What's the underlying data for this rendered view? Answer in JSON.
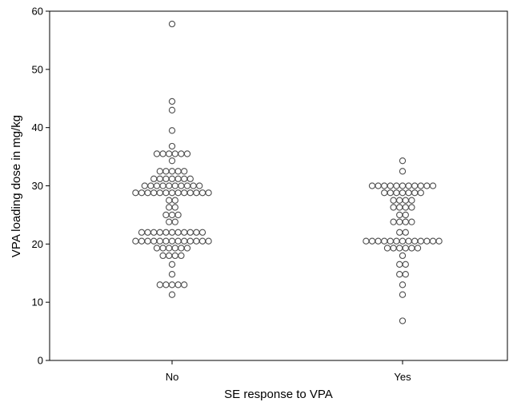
{
  "chart_data": {
    "type": "scatter",
    "title": "",
    "xlabel": "SE response to VPA",
    "ylabel": "VPA loading dose in mg/kg",
    "ylim": [
      0,
      60
    ],
    "yticks": [
      0,
      10,
      20,
      30,
      40,
      50,
      60
    ],
    "categories": [
      "No",
      "Yes"
    ],
    "grid": false,
    "legend": "none",
    "marker": "open-circle",
    "series": [
      {
        "category": "No",
        "values": [
          57.8,
          44.5,
          43,
          39.5,
          36.8,
          35.5,
          35.5,
          35.5,
          35.5,
          35.5,
          35.5,
          34.3,
          32.5,
          32.5,
          32.5,
          32.5,
          32.5,
          31.2,
          31.2,
          31.2,
          31.2,
          31.2,
          31.2,
          31.2,
          30,
          30,
          30,
          30,
          30,
          30,
          30,
          30,
          30,
          30,
          28.8,
          28.8,
          28.8,
          28.8,
          28.8,
          28.8,
          28.8,
          28.8,
          28.8,
          28.8,
          28.8,
          28.8,
          28.8,
          27.5,
          27.5,
          26.3,
          26.3,
          25,
          25,
          25,
          23.8,
          23.8,
          22,
          22,
          22,
          22,
          22,
          22,
          22,
          22,
          22,
          22,
          22,
          20.5,
          20.5,
          20.5,
          20.5,
          20.5,
          20.5,
          20.5,
          20.5,
          20.5,
          20.5,
          20.5,
          20.5,
          20.5,
          19.3,
          19.3,
          19.3,
          19.3,
          19.3,
          19.3,
          18,
          18,
          18,
          18,
          16.5,
          14.8,
          13,
          13,
          13,
          13,
          13,
          11.3
        ]
      },
      {
        "category": "Yes",
        "values": [
          34.3,
          32.5,
          30,
          30,
          30,
          30,
          30,
          30,
          30,
          30,
          30,
          30,
          30,
          28.8,
          28.8,
          28.8,
          28.8,
          28.8,
          28.8,
          28.8,
          27.5,
          27.5,
          27.5,
          27.5,
          26.3,
          26.3,
          26.3,
          26.3,
          25,
          25,
          23.8,
          23.8,
          23.8,
          23.8,
          22,
          22,
          20.5,
          20.5,
          20.5,
          20.5,
          20.5,
          20.5,
          20.5,
          20.5,
          20.5,
          20.5,
          20.5,
          20.5,
          20.5,
          19.3,
          19.3,
          19.3,
          19.3,
          19.3,
          19.3,
          18,
          16.5,
          16.5,
          14.8,
          14.8,
          13,
          11.3,
          6.8
        ]
      }
    ]
  },
  "colors": {
    "marker_stroke": "#4d4d4d",
    "axis": "#000000"
  }
}
